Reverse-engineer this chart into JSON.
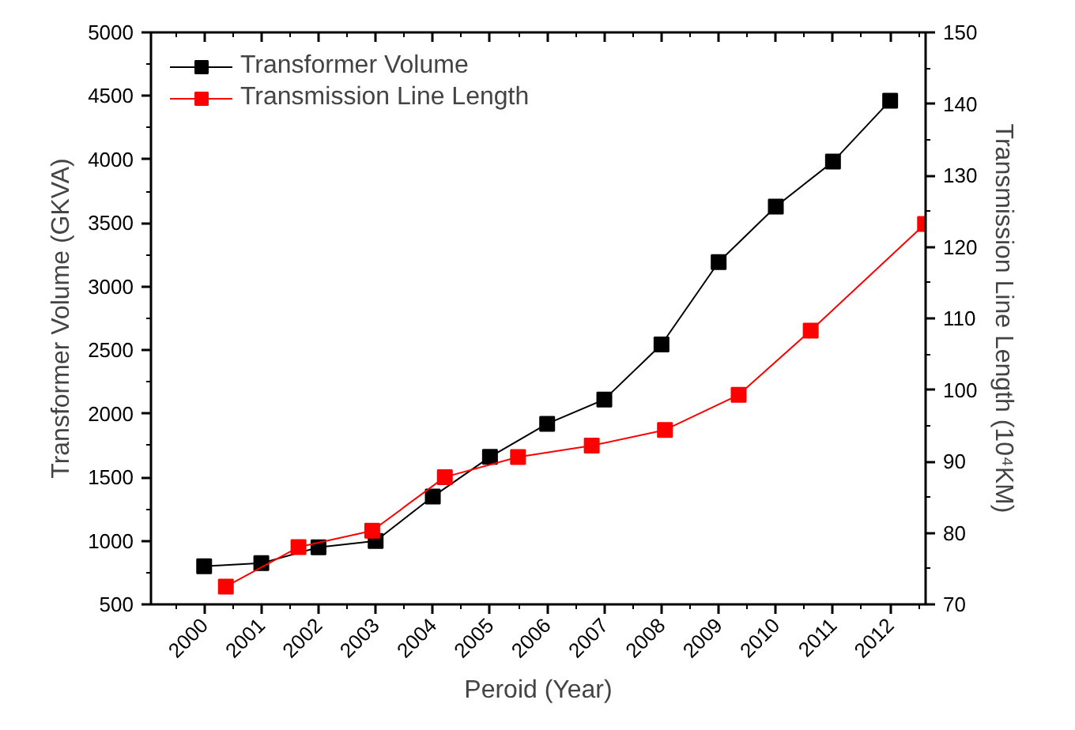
{
  "chart_data": {
    "type": "line",
    "xlabel": "Peroid (Year)",
    "ylabel": "Transformer Volume (GKVA)",
    "y2label": "Transmission Line Length (10⁴KM)",
    "xlim": [
      1999.07,
      2012.62
    ],
    "ylim": [
      500,
      5000
    ],
    "y2lim": [
      70,
      150
    ],
    "xticks": [
      2000,
      2001,
      2002,
      2003,
      2004,
      2005,
      2006,
      2007,
      2008,
      2009,
      2010,
      2011,
      2012,
      {
        "value": 1999.5,
        "label": null
      },
      {
        "value": 2000.5,
        "label": null
      },
      {
        "value": 2001.5,
        "label": null
      },
      {
        "value": 2002.5,
        "label": null
      },
      {
        "value": 2003.5,
        "label": null
      },
      {
        "value": 2004.5,
        "label": null
      },
      {
        "value": 2005.5,
        "label": null
      },
      {
        "value": 2006.5,
        "label": null
      },
      {
        "value": 2007.5,
        "label": null
      },
      {
        "value": 2008.5,
        "label": null
      },
      {
        "value": 2009.5,
        "label": null
      },
      {
        "value": 2010.5,
        "label": null
      },
      {
        "value": 2011.5,
        "label": null
      },
      {
        "value": 2012.5,
        "label": null
      }
    ],
    "yticks": [
      500,
      1000,
      1500,
      2000,
      2500,
      3000,
      3500,
      4000,
      4500,
      5000,
      {
        "value": 750,
        "label": null
      },
      {
        "value": 1250,
        "label": null
      },
      {
        "value": 1750,
        "label": null
      },
      {
        "value": 2250,
        "label": null
      },
      {
        "value": 2750,
        "label": null
      },
      {
        "value": 3250,
        "label": null
      },
      {
        "value": 3750,
        "label": null
      },
      {
        "value": 4250,
        "label": null
      },
      {
        "value": 4750,
        "label": null
      }
    ],
    "y2ticks": [
      70,
      80,
      90,
      100,
      110,
      120,
      130,
      140,
      150,
      {
        "value": 75,
        "label": null
      },
      {
        "value": 85,
        "label": null
      },
      {
        "value": 95,
        "label": null
      },
      {
        "value": 105,
        "label": null
      },
      {
        "value": 115,
        "label": null
      },
      {
        "value": 125,
        "label": null
      },
      {
        "value": 135,
        "label": null
      },
      {
        "value": 145,
        "label": null
      }
    ],
    "marker": "square",
    "line_style": "solid",
    "grid": false,
    "legend": "top left",
    "series": [
      {
        "name": "Transformer Volume",
        "color": "#000000",
        "x": [
          2000,
          2001,
          2002,
          2003,
          2004,
          2005,
          2006,
          2007,
          2008,
          2009,
          2010,
          2011,
          2012
        ],
        "values": [
          800,
          824,
          949,
          999,
          1348,
          1660,
          1921,
          2112,
          2545,
          3193,
          3630,
          3983,
          4463
        ]
      },
      {
        "name": "Transmission Line Length",
        "color": "#ff0000",
        "axis": "y2",
        "x": [
          2000.38,
          2001.65,
          2002.94,
          2004.21,
          2005.49,
          2006.78,
          2008.06,
          2009.35,
          2010.61,
          2012.61
        ],
        "values": [
          72.5,
          78.0,
          80.3,
          87.8,
          90.6,
          92.2,
          94.4,
          99.3,
          108.3,
          123.2
        ]
      }
    ]
  }
}
